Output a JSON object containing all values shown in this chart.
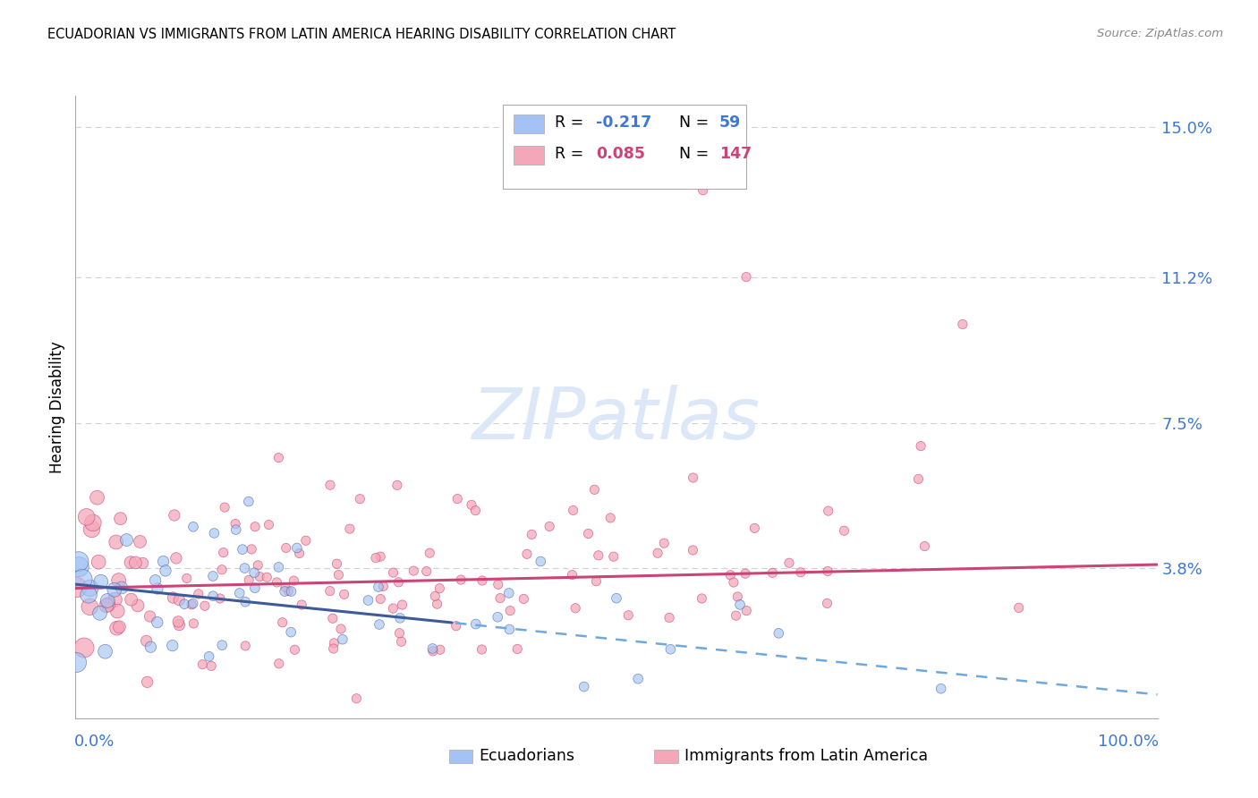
{
  "title": "ECUADORIAN VS IMMIGRANTS FROM LATIN AMERICA HEARING DISABILITY CORRELATION CHART",
  "source": "Source: ZipAtlas.com",
  "ylabel": "Hearing Disability",
  "ytick_vals": [
    0.0,
    0.038,
    0.075,
    0.112,
    0.15
  ],
  "ytick_labels": [
    "",
    "3.8%",
    "7.5%",
    "11.2%",
    "15.0%"
  ],
  "blue_color": "#a4c2f4",
  "pink_color": "#f4a7b9",
  "blue_line_color": "#3d5a99",
  "pink_line_color": "#cc4477",
  "blue_dash_color": "#6fa8dc",
  "watermark_color": "#dce8f8",
  "watermark_text": "ZIPatlas",
  "background_color": "#ffffff",
  "grid_color": "#cccccc",
  "axis_color": "#3c78d8",
  "legend_blue_R": "-0.217",
  "legend_blue_N": "59",
  "legend_pink_R": "0.085",
  "legend_pink_N": "147",
  "blue_intercept": 0.034,
  "blue_slope": -0.028,
  "pink_intercept": 0.033,
  "pink_slope": 0.006,
  "xlim": [
    0,
    1.0
  ],
  "ylim": [
    0,
    0.158
  ]
}
